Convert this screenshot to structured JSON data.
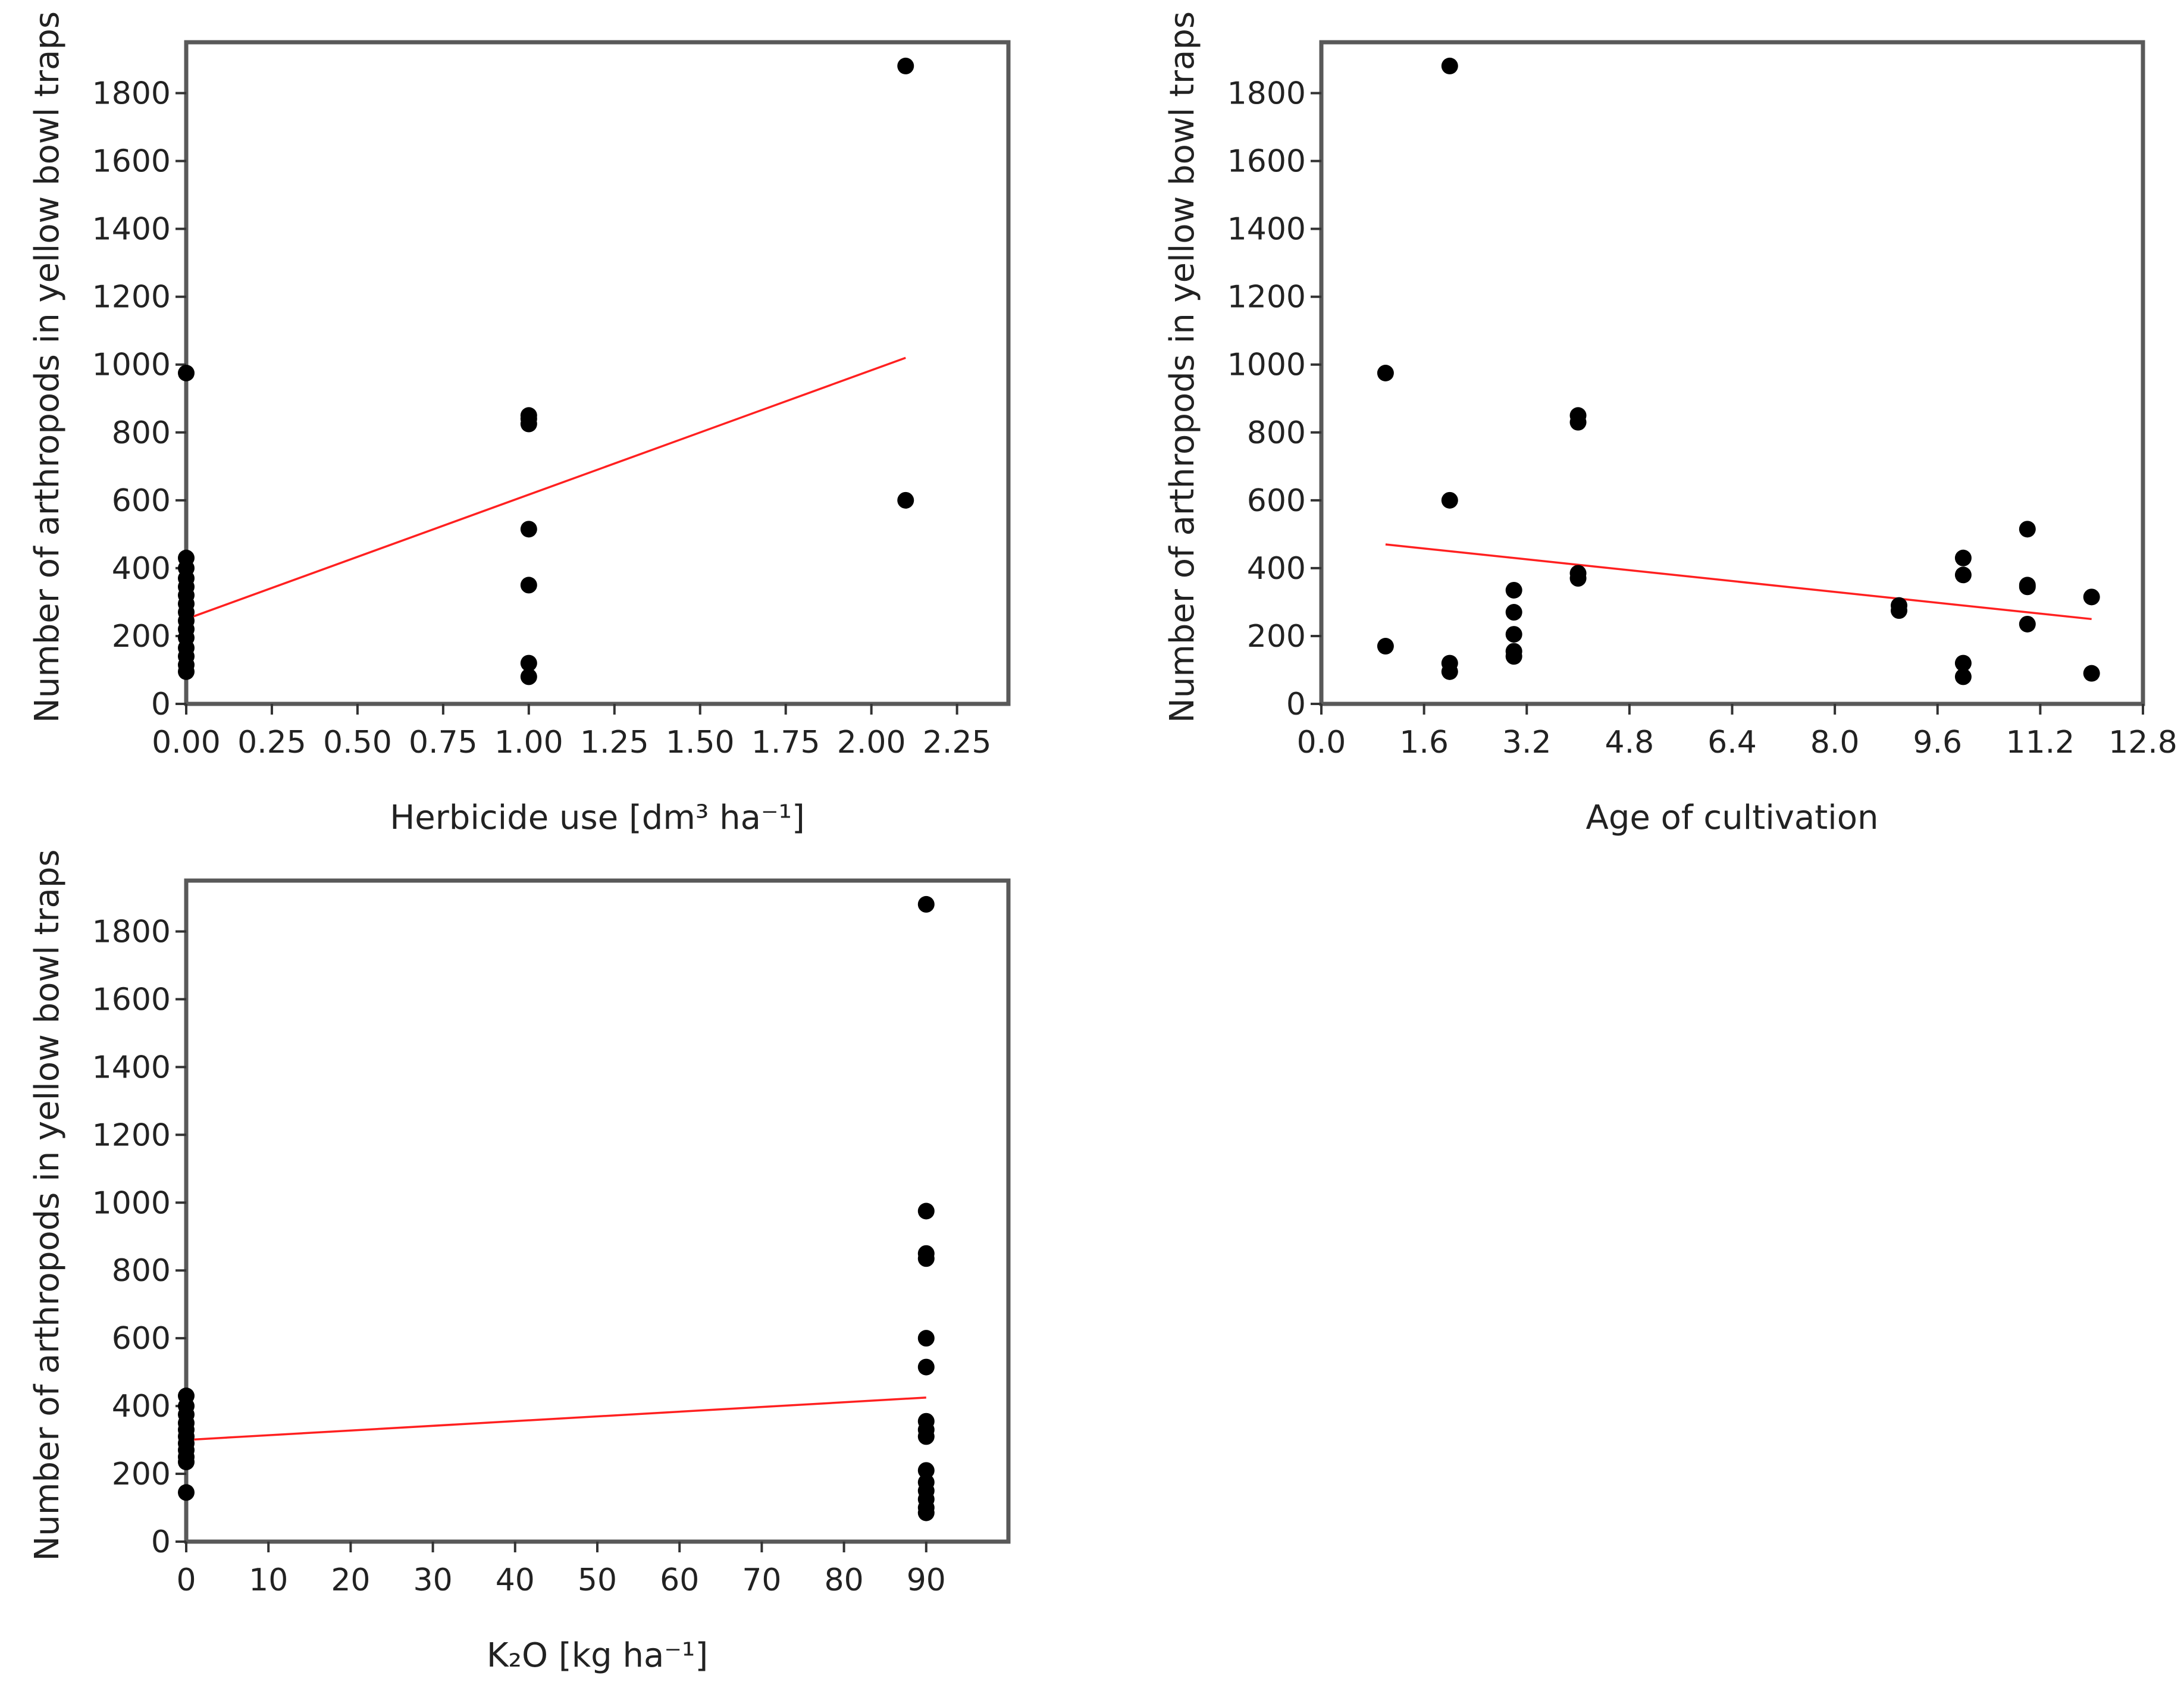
{
  "chart_data": [
    {
      "type": "scatter",
      "xlabel": "Herbicide use [dm³ ha⁻¹]",
      "ylabel": "Number of arthropods in yellow bowl traps",
      "xlim": [
        0,
        2.4
      ],
      "ylim": [
        0,
        1950
      ],
      "xticks": [
        "0.00",
        "0.25",
        "0.50",
        "0.75",
        "1.00",
        "1.25",
        "1.50",
        "1.75",
        "2.00",
        "2.25"
      ],
      "xtick_values": [
        0,
        0.25,
        0.5,
        0.75,
        1.0,
        1.25,
        1.5,
        1.75,
        2.0,
        2.25
      ],
      "yticks": [
        "0",
        "200",
        "400",
        "600",
        "800",
        "1000",
        "1200",
        "1400",
        "1600",
        "1800"
      ],
      "ytick_values": [
        0,
        200,
        400,
        600,
        800,
        1000,
        1200,
        1400,
        1600,
        1800
      ],
      "points": [
        [
          0,
          975
        ],
        [
          0,
          430
        ],
        [
          0,
          400
        ],
        [
          0,
          370
        ],
        [
          0,
          345
        ],
        [
          0,
          320
        ],
        [
          0,
          295
        ],
        [
          0,
          270
        ],
        [
          0,
          245
        ],
        [
          0,
          220
        ],
        [
          0,
          195
        ],
        [
          0,
          165
        ],
        [
          0,
          140
        ],
        [
          0,
          115
        ],
        [
          0,
          95
        ],
        [
          1.0,
          850
        ],
        [
          1.0,
          840
        ],
        [
          1.0,
          825
        ],
        [
          1.0,
          515
        ],
        [
          1.0,
          350
        ],
        [
          1.0,
          120
        ],
        [
          1.0,
          80
        ],
        [
          2.1,
          1880
        ],
        [
          2.1,
          600
        ]
      ],
      "fit_line": {
        "x": [
          0,
          2.1
        ],
        "y": [
          250,
          1020
        ],
        "color": "#ff2020"
      }
    },
    {
      "type": "scatter",
      "xlabel": "Age of cultivation",
      "ylabel": "Number of arthropods in yellow bowl traps",
      "xlim": [
        0,
        12.8
      ],
      "ylim": [
        0,
        1950
      ],
      "xticks": [
        "0.0",
        "1.6",
        "3.2",
        "4.8",
        "6.4",
        "8.0",
        "9.6",
        "11.2",
        "12.8"
      ],
      "xtick_values": [
        0,
        1.6,
        3.2,
        4.8,
        6.4,
        8.0,
        9.6,
        11.2,
        12.8
      ],
      "yticks": [
        "0",
        "200",
        "400",
        "600",
        "800",
        "1000",
        "1200",
        "1400",
        "1600",
        "1800"
      ],
      "ytick_values": [
        0,
        200,
        400,
        600,
        800,
        1000,
        1200,
        1400,
        1600,
        1800
      ],
      "points": [
        [
          1,
          975
        ],
        [
          1,
          170
        ],
        [
          2,
          1880
        ],
        [
          2,
          600
        ],
        [
          2,
          120
        ],
        [
          2,
          95
        ],
        [
          3,
          335
        ],
        [
          3,
          270
        ],
        [
          3,
          205
        ],
        [
          3,
          155
        ],
        [
          3,
          140
        ],
        [
          4,
          850
        ],
        [
          4,
          830
        ],
        [
          4,
          385
        ],
        [
          4,
          370
        ],
        [
          9,
          290
        ],
        [
          9,
          275
        ],
        [
          10,
          430
        ],
        [
          10,
          380
        ],
        [
          10,
          120
        ],
        [
          10,
          80
        ],
        [
          11,
          515
        ],
        [
          11,
          350
        ],
        [
          11,
          345
        ],
        [
          11,
          235
        ],
        [
          12,
          315
        ],
        [
          12,
          90
        ]
      ],
      "fit_line": {
        "x": [
          1,
          12
        ],
        "y": [
          470,
          250
        ],
        "color": "#ff2020"
      }
    },
    {
      "type": "scatter",
      "xlabel": "K₂O [kg ha⁻¹]",
      "ylabel": "Number of arthropods in yellow bowl traps",
      "xlim": [
        0,
        100
      ],
      "ylim": [
        0,
        1950
      ],
      "xticks": [
        "0",
        "10",
        "20",
        "30",
        "40",
        "50",
        "60",
        "70",
        "80",
        "90"
      ],
      "xtick_values": [
        0,
        10,
        20,
        30,
        40,
        50,
        60,
        70,
        80,
        90
      ],
      "yticks": [
        "0",
        "200",
        "400",
        "600",
        "800",
        "1000",
        "1200",
        "1400",
        "1600",
        "1800"
      ],
      "ytick_values": [
        0,
        200,
        400,
        600,
        800,
        1000,
        1200,
        1400,
        1600,
        1800
      ],
      "points": [
        [
          0,
          430
        ],
        [
          0,
          400
        ],
        [
          0,
          375
        ],
        [
          0,
          350
        ],
        [
          0,
          330
        ],
        [
          0,
          310
        ],
        [
          0,
          290
        ],
        [
          0,
          270
        ],
        [
          0,
          250
        ],
        [
          0,
          235
        ],
        [
          0,
          145
        ],
        [
          90,
          1880
        ],
        [
          90,
          975
        ],
        [
          90,
          850
        ],
        [
          90,
          835
        ],
        [
          90,
          600
        ],
        [
          90,
          515
        ],
        [
          90,
          355
        ],
        [
          90,
          330
        ],
        [
          90,
          310
        ],
        [
          90,
          210
        ],
        [
          90,
          175
        ],
        [
          90,
          150
        ],
        [
          90,
          125
        ],
        [
          90,
          100
        ],
        [
          90,
          85
        ]
      ],
      "fit_line": {
        "x": [
          0,
          90
        ],
        "y": [
          300,
          425
        ],
        "color": "#ff2020"
      }
    }
  ]
}
